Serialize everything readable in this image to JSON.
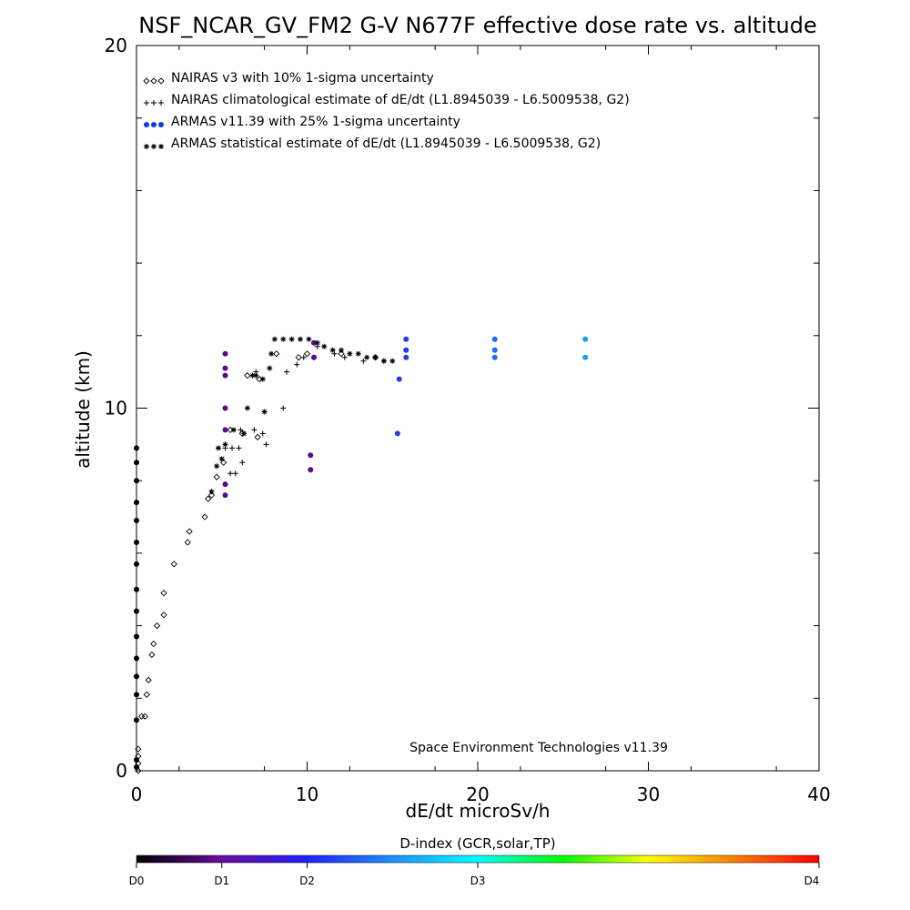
{
  "chart_data": {
    "type": "scatter",
    "title": "NSF_NCAR_GV_FM2 G-V     N677F  effective dose rate vs. altitude",
    "xlabel": "dE/dt microSv/h",
    "ylabel": "altitude (km)",
    "xlim": [
      0,
      40
    ],
    "ylim": [
      0,
      20
    ],
    "x_ticks": [
      "0",
      "10",
      "20",
      "30",
      "40"
    ],
    "y_ticks": [
      "0",
      "10",
      "20"
    ],
    "grid": false,
    "legend_position": "top-left",
    "credit": "Space Environment Technologies v11.39",
    "colorbar": {
      "label": "D-index (GCR,solar,TP)",
      "ticks": [
        {
          "label": "D0",
          "value": 0
        },
        {
          "label": "D1",
          "value": 0.125
        },
        {
          "label": "D2",
          "value": 0.25
        },
        {
          "label": "D3",
          "value": 0.5
        },
        {
          "label": "D4",
          "value": 1.0
        }
      ],
      "colors": [
        "#000000",
        "#6a0aa0",
        "#2020ff",
        "#1f8fff",
        "#00ffff",
        "#00ff00",
        "#ffff00",
        "#ff8000",
        "#ff0000"
      ]
    },
    "series": [
      {
        "name": "NAIRAS v3 with 10% 1-sigma uncertainty",
        "marker": "diamond",
        "color": "#000000",
        "points": [
          [
            0.1,
            0.0
          ],
          [
            0.1,
            0.2
          ],
          [
            0.1,
            0.4
          ],
          [
            0.1,
            0.6
          ],
          [
            0.3,
            1.5
          ],
          [
            0.5,
            1.5
          ],
          [
            0.6,
            2.1
          ],
          [
            0.7,
            2.5
          ],
          [
            0.9,
            3.2
          ],
          [
            1.0,
            3.5
          ],
          [
            1.2,
            4.0
          ],
          [
            1.6,
            4.3
          ],
          [
            1.6,
            4.9
          ],
          [
            2.2,
            5.7
          ],
          [
            3.0,
            6.3
          ],
          [
            3.1,
            6.6
          ],
          [
            4.0,
            7.0
          ],
          [
            4.2,
            7.5
          ],
          [
            4.4,
            7.6
          ],
          [
            4.7,
            8.1
          ],
          [
            5.1,
            8.5
          ],
          [
            6.2,
            9.3
          ],
          [
            7.1,
            9.2
          ],
          [
            5.5,
            9.4
          ],
          [
            6.5,
            10.9
          ],
          [
            7.2,
            10.8
          ],
          [
            8.2,
            11.5
          ],
          [
            9.5,
            11.4
          ],
          [
            10.0,
            11.5
          ],
          [
            12.0,
            11.5
          ],
          [
            14.0,
            11.4
          ]
        ]
      },
      {
        "name": "NAIRAS climatological estimate of dE/dt (L1.8945039 - L6.5009538, G2)",
        "marker": "plus",
        "color": "#000000",
        "points": [
          [
            4.8,
            8.9
          ],
          [
            5.2,
            8.9
          ],
          [
            5.6,
            8.9
          ],
          [
            6.0,
            8.9
          ],
          [
            5.5,
            8.2
          ],
          [
            5.8,
            8.2
          ],
          [
            6.2,
            8.5
          ],
          [
            6.1,
            9.4
          ],
          [
            6.9,
            9.4
          ],
          [
            7.4,
            9.3
          ],
          [
            7.6,
            9.0
          ],
          [
            8.6,
            10.0
          ],
          [
            6.8,
            10.9
          ],
          [
            7.0,
            11.0
          ],
          [
            8.8,
            11.0
          ],
          [
            9.4,
            11.2
          ],
          [
            9.8,
            11.4
          ],
          [
            10.6,
            11.7
          ],
          [
            11.6,
            11.5
          ],
          [
            12.2,
            11.4
          ],
          [
            13.3,
            11.3
          ],
          [
            14.5,
            11.3
          ]
        ]
      },
      {
        "name": "ARMAS v11.39 with 25% 1-sigma uncertainty",
        "marker": "dot",
        "color": "#0a3fd8",
        "points": [
          [
            0.0,
            0.1
          ],
          [
            0.0,
            0.3
          ],
          [
            0.0,
            1.4
          ],
          [
            0.0,
            2.1
          ],
          [
            0.0,
            2.6
          ],
          [
            0.0,
            3.1
          ],
          [
            0.0,
            3.7
          ],
          [
            0.0,
            4.4
          ],
          [
            0.0,
            5.0
          ],
          [
            0.0,
            5.7
          ],
          [
            0.0,
            6.3
          ],
          [
            0.0,
            6.9
          ],
          [
            0.0,
            7.4
          ],
          [
            0.0,
            8.0
          ],
          [
            0.0,
            8.5
          ],
          [
            0.0,
            8.9
          ],
          [
            5.2,
            7.6
          ],
          [
            5.2,
            7.9
          ],
          [
            5.2,
            9.4
          ],
          [
            5.2,
            10.0
          ],
          [
            5.2,
            10.9
          ],
          [
            5.2,
            11.5
          ],
          [
            5.2,
            11.1
          ],
          [
            10.2,
            8.7
          ],
          [
            10.2,
            8.3
          ],
          [
            10.4,
            11.4
          ],
          [
            10.4,
            11.8
          ],
          [
            15.3,
            9.3
          ],
          [
            15.4,
            10.8
          ],
          [
            15.8,
            11.4
          ],
          [
            15.8,
            11.6
          ],
          [
            15.8,
            11.9
          ],
          [
            21.0,
            11.4
          ],
          [
            21.0,
            11.6
          ],
          [
            21.0,
            11.9
          ],
          [
            26.3,
            11.4
          ],
          [
            26.3,
            11.9
          ]
        ]
      },
      {
        "name": "ARMAS statistical estimate of dE/dt (L1.8945039 - L6.5009538, G2)",
        "marker": "asterisk",
        "color": "#000000",
        "points": [
          [
            4.4,
            7.7
          ],
          [
            4.7,
            8.4
          ],
          [
            5.0,
            8.6
          ],
          [
            4.8,
            8.9
          ],
          [
            5.2,
            9.0
          ],
          [
            5.7,
            9.4
          ],
          [
            6.3,
            9.3
          ],
          [
            6.5,
            10.0
          ],
          [
            7.5,
            9.9
          ],
          [
            6.8,
            10.9
          ],
          [
            7.0,
            10.9
          ],
          [
            7.4,
            10.8
          ],
          [
            7.8,
            11.1
          ],
          [
            7.9,
            11.5
          ],
          [
            8.1,
            11.9
          ],
          [
            8.6,
            11.9
          ],
          [
            9.1,
            11.9
          ],
          [
            9.6,
            11.9
          ],
          [
            10.1,
            11.9
          ],
          [
            10.6,
            11.8
          ],
          [
            11.0,
            11.7
          ],
          [
            11.5,
            11.6
          ],
          [
            12.0,
            11.6
          ],
          [
            12.5,
            11.5
          ],
          [
            13.0,
            11.5
          ],
          [
            13.5,
            11.4
          ],
          [
            14.0,
            11.4
          ],
          [
            14.5,
            11.3
          ],
          [
            15.0,
            11.3
          ]
        ]
      }
    ]
  }
}
